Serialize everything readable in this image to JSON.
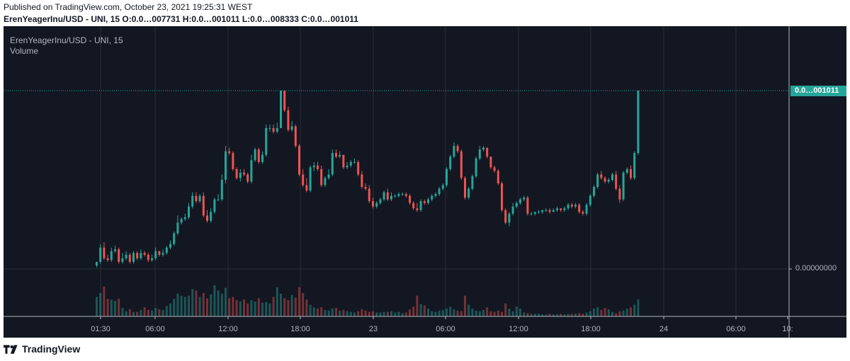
{
  "header": {
    "published": "Published on TradingView.com, October 23, 2021 19:25:31 WEST",
    "ohlc": "ErenYeagerInu/USD - UNI, 15 O:0.0…007731 H:0.0…001011 L:0.0…008333 C:0.0…001011"
  },
  "legend": {
    "title": "ErenYeagerInu/USD - UNI, 15",
    "volume": "Volume"
  },
  "price_axis": {
    "last_price_label": "0.0…001011",
    "zero_label": "0.00000000"
  },
  "brand": {
    "name": "TradingView",
    "logo_icon": "tradingview-logo-icon"
  },
  "colors": {
    "up": "#26a69a",
    "down": "#ef5350",
    "background": "#131722",
    "grid": "#2a2e39",
    "axis_text": "#b2b5be"
  },
  "chart_data": {
    "type": "candlestick",
    "symbol": "ErenYeagerInu/USD - UNI",
    "interval": "15",
    "x_tick_labels": [
      "01:30",
      "06:00",
      "12:00",
      "18:00",
      "23",
      "06:00",
      "12:00",
      "18:00",
      "24",
      "06:00",
      "10:"
    ],
    "y_tick_labels": [
      "0.00000000"
    ],
    "last_price": "0.0…001011",
    "price_scale": "relative to high (H=100)",
    "ohlc_rel": [
      [
        2,
        4
      ],
      [
        4,
        12
      ],
      [
        12,
        6
      ],
      [
        6,
        5
      ],
      [
        5,
        10
      ],
      [
        10,
        11
      ],
      [
        11,
        4
      ],
      [
        4,
        6
      ],
      [
        6,
        8
      ],
      [
        8,
        4
      ],
      [
        4,
        9
      ],
      [
        9,
        6
      ],
      [
        6,
        9
      ],
      [
        9,
        8
      ],
      [
        8,
        5
      ],
      [
        5,
        6
      ],
      [
        6,
        10
      ],
      [
        10,
        8
      ],
      [
        8,
        9
      ],
      [
        9,
        12
      ],
      [
        12,
        14
      ],
      [
        14,
        20
      ],
      [
        20,
        26
      ],
      [
        26,
        28
      ],
      [
        28,
        29
      ],
      [
        29,
        35
      ],
      [
        35,
        41
      ],
      [
        41,
        38
      ],
      [
        38,
        41
      ],
      [
        41,
        30
      ],
      [
        30,
        27
      ],
      [
        27,
        32
      ],
      [
        32,
        39
      ],
      [
        39,
        39
      ],
      [
        39,
        50
      ],
      [
        50,
        66
      ],
      [
        66,
        65
      ],
      [
        65,
        56
      ],
      [
        56,
        51
      ],
      [
        51,
        54
      ],
      [
        54,
        53
      ],
      [
        53,
        49
      ],
      [
        49,
        61
      ],
      [
        61,
        67
      ],
      [
        67,
        60
      ],
      [
        60,
        64
      ],
      [
        64,
        79
      ],
      [
        79,
        79
      ],
      [
        79,
        77
      ],
      [
        77,
        79
      ],
      [
        79,
        100
      ],
      [
        100,
        89
      ],
      [
        89,
        78
      ],
      [
        78,
        80
      ],
      [
        80,
        69
      ],
      [
        69,
        53
      ],
      [
        53,
        47
      ],
      [
        47,
        44
      ],
      [
        44,
        57
      ],
      [
        57,
        58
      ],
      [
        58,
        56
      ],
      [
        56,
        47
      ],
      [
        47,
        51
      ],
      [
        51,
        53
      ],
      [
        53,
        65
      ],
      [
        65,
        63
      ],
      [
        63,
        64
      ],
      [
        64,
        57
      ],
      [
        57,
        58
      ],
      [
        58,
        60
      ],
      [
        60,
        60
      ],
      [
        60,
        53
      ],
      [
        53,
        46
      ],
      [
        46,
        45
      ],
      [
        45,
        38
      ],
      [
        38,
        35
      ],
      [
        35,
        37
      ],
      [
        37,
        39
      ],
      [
        39,
        43
      ],
      [
        43,
        39
      ],
      [
        39,
        41
      ],
      [
        41,
        41
      ],
      [
        41,
        42
      ],
      [
        42,
        42
      ],
      [
        42,
        41
      ],
      [
        41,
        37
      ],
      [
        37,
        34
      ],
      [
        34,
        33
      ],
      [
        33,
        38
      ],
      [
        38,
        37
      ],
      [
        37,
        39
      ],
      [
        39,
        41
      ],
      [
        41,
        42
      ],
      [
        42,
        45
      ],
      [
        45,
        47
      ],
      [
        47,
        56
      ],
      [
        56,
        63
      ],
      [
        63,
        69
      ],
      [
        69,
        66
      ],
      [
        66,
        51
      ],
      [
        51,
        40
      ],
      [
        40,
        45
      ],
      [
        45,
        52
      ],
      [
        52,
        62
      ],
      [
        62,
        67
      ],
      [
        67,
        68
      ],
      [
        68,
        63
      ],
      [
        63,
        57
      ],
      [
        57,
        55
      ],
      [
        55,
        48
      ],
      [
        48,
        33
      ],
      [
        33,
        26
      ],
      [
        26,
        31
      ],
      [
        31,
        35
      ],
      [
        35,
        37
      ],
      [
        37,
        39
      ],
      [
        39,
        40
      ],
      [
        40,
        31
      ],
      [
        31,
        31
      ],
      [
        31,
        32
      ],
      [
        32,
        32
      ],
      [
        32,
        33
      ],
      [
        33,
        33
      ],
      [
        33,
        32
      ],
      [
        32,
        33
      ],
      [
        33,
        34
      ],
      [
        34,
        33
      ],
      [
        33,
        34
      ],
      [
        34,
        36
      ],
      [
        36,
        35
      ],
      [
        35,
        36
      ],
      [
        36,
        32
      ],
      [
        32,
        31
      ],
      [
        31,
        36
      ],
      [
        36,
        41
      ],
      [
        41,
        46
      ],
      [
        46,
        53
      ],
      [
        53,
        51
      ],
      [
        51,
        49
      ],
      [
        49,
        50
      ],
      [
        50,
        53
      ],
      [
        53,
        45
      ],
      [
        45,
        39
      ],
      [
        39,
        54
      ],
      [
        54,
        56
      ],
      [
        56,
        51
      ],
      [
        51,
        65
      ],
      [
        65,
        100
      ]
    ],
    "volume_rel": [
      30,
      36,
      46,
      27,
      26,
      24,
      27,
      13,
      8,
      11,
      7,
      7,
      10,
      14,
      10,
      9,
      13,
      11,
      10,
      16,
      20,
      27,
      35,
      32,
      30,
      32,
      42,
      40,
      30,
      36,
      28,
      34,
      48,
      40,
      35,
      44,
      28,
      30,
      25,
      23,
      26,
      20,
      25,
      23,
      28,
      21,
      22,
      20,
      30,
      45,
      35,
      28,
      25,
      33,
      29,
      45,
      36,
      26,
      18,
      14,
      12,
      14,
      10,
      9,
      12,
      13,
      9,
      10,
      8,
      7,
      6,
      8,
      11,
      9,
      7,
      8,
      6,
      6,
      7,
      7,
      8,
      6,
      7,
      5,
      6,
      11,
      15,
      32,
      19,
      17,
      12,
      8,
      7,
      9,
      10,
      12,
      15,
      11,
      9,
      8,
      32,
      18,
      12,
      9,
      8,
      10,
      14,
      8,
      7,
      9,
      7,
      20,
      12,
      8,
      15,
      12,
      6,
      5,
      4,
      4,
      4,
      3,
      3,
      4,
      3,
      3,
      4,
      3,
      4,
      4,
      4,
      5,
      4,
      6,
      8,
      12,
      14,
      10,
      13,
      11,
      7,
      5,
      8,
      9,
      12,
      14,
      18,
      26
    ]
  }
}
